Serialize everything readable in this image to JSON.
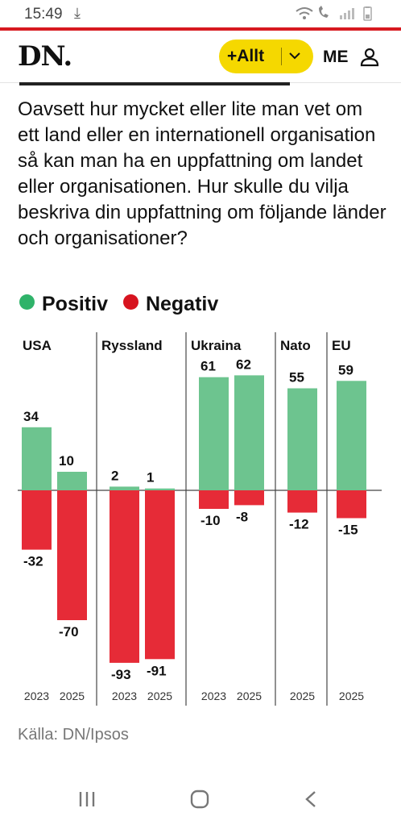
{
  "status_bar": {
    "time": "15:49",
    "download_icon": "download-icon",
    "right_icons": "wifi-icon call-icon signal-icon battery-icon"
  },
  "header": {
    "logo": "DN.",
    "pill_label": "+Allt",
    "me_label": "ME"
  },
  "question": "Oavsett hur mycket eller lite man vet om ett land eller en internationell organisation så kan man ha en uppfattning om landet eller organisationen. Hur skulle du vilja beskriva din uppfattning om följande länder och organisationer?",
  "colors": {
    "positive": "#6dc48f",
    "negative": "#e62b37",
    "legend_positive": "#2fb36a",
    "legend_negative": "#d7141f",
    "accent_yellow": "#f5d800"
  },
  "chart_data": {
    "type": "bar",
    "legend": [
      "Positiv",
      "Negativ"
    ],
    "groups": [
      {
        "name": "USA",
        "bars": [
          {
            "year": "2023",
            "positive": 34,
            "negative": -32
          },
          {
            "year": "2025",
            "positive": 10,
            "negative": -70
          }
        ]
      },
      {
        "name": "Ryssland",
        "bars": [
          {
            "year": "2023",
            "positive": 2,
            "negative": -93
          },
          {
            "year": "2025",
            "positive": 1,
            "negative": -91
          }
        ]
      },
      {
        "name": "Ukraina",
        "bars": [
          {
            "year": "2023",
            "positive": 61,
            "negative": -10
          },
          {
            "year": "2025",
            "positive": 62,
            "negative": -8
          }
        ]
      },
      {
        "name": "Nato",
        "bars": [
          {
            "year": "2025",
            "positive": 55,
            "negative": -12
          }
        ]
      },
      {
        "name": "EU",
        "bars": [
          {
            "year": "2025",
            "positive": 59,
            "negative": -15
          }
        ]
      }
    ],
    "ylim": [
      -100,
      70
    ]
  },
  "source": "Källa: DN/Ipsos"
}
